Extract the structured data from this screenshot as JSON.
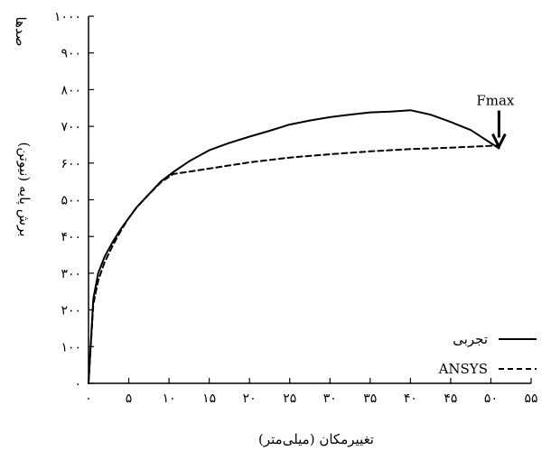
{
  "chart_data": {
    "type": "line",
    "title": "",
    "xlabel": "تغییرمکان (میلی‌متر)",
    "ylabel": "برش پایه (نیوتن)",
    "y_unit_note": "صدها",
    "xlim": [
      0,
      55
    ],
    "ylim": [
      0,
      1000
    ],
    "x_ticks": [
      0,
      5,
      10,
      15,
      20,
      25,
      30,
      35,
      40,
      45,
      50,
      55
    ],
    "x_tick_labels": [
      "۰",
      "۵",
      "۱۰",
      "۱۵",
      "۲۰",
      "۲۵",
      "۳۰",
      "۳۵",
      "۴۰",
      "۴۵",
      "۵۰",
      "۵۵"
    ],
    "y_ticks": [
      0,
      100,
      200,
      300,
      400,
      500,
      600,
      700,
      800,
      900,
      1000
    ],
    "y_tick_labels": [
      "۰",
      "۱۰۰",
      "۲۰۰",
      "۳۰۰",
      "۴۰۰",
      "۵۰۰",
      "۶۰۰",
      "۷۰۰",
      "۸۰۰",
      "۹۰۰",
      "۱۰۰۰"
    ],
    "grid": false,
    "legend_position": "bottom-right",
    "series": [
      {
        "name": "تجربی",
        "style": "solid",
        "x": [
          0,
          0.6,
          1.2,
          2,
          3,
          4,
          5,
          6,
          7.5,
          9,
          10.5,
          12.5,
          15,
          17.5,
          20,
          22.5,
          25,
          27.5,
          30,
          32.5,
          35,
          37.5,
          40,
          42.5,
          45,
          47.5,
          51
        ],
        "y": [
          0,
          230,
          300,
          345,
          385,
          420,
          450,
          480,
          515,
          550,
          575,
          605,
          635,
          655,
          672,
          688,
          705,
          716,
          725,
          732,
          738,
          740,
          744,
          732,
          712,
          690,
          640
        ]
      },
      {
        "name": "ANSYS",
        "style": "dashed",
        "x": [
          0,
          0.6,
          1.2,
          2,
          3,
          4,
          5,
          6,
          7.5,
          9,
          10.5,
          15,
          20,
          25,
          30,
          35,
          40,
          45,
          51
        ],
        "y": [
          0,
          215,
          280,
          330,
          375,
          415,
          450,
          480,
          515,
          548,
          570,
          585,
          602,
          615,
          624,
          632,
          638,
          642,
          648
        ]
      }
    ],
    "annotation": {
      "text": "Fmax",
      "x": 51,
      "y": 640
    }
  }
}
